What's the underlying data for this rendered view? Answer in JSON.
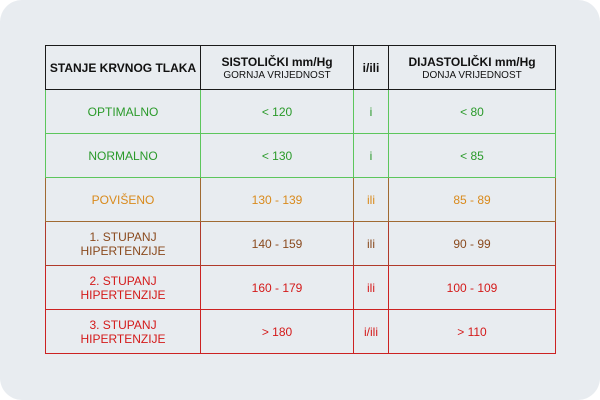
{
  "header": {
    "col1": "STANJE KRVNOG TLAKA",
    "col2_main": "SISTOLIČKI mm/Hg",
    "col2_sub": "GORNJA VRIJEDNOST",
    "col3": "i/ili",
    "col4_main": "DIJASTOLIČKI mm/Hg",
    "col4_sub": "DONJA VRIJEDNOST"
  },
  "rows": [
    {
      "stanje": "OPTIMALNO",
      "sistolicki": "< 120",
      "veznik": "i",
      "dijastolicki": "< 80",
      "color": "#2a9a2a",
      "border": "#5cc65c"
    },
    {
      "stanje": "NORMALNO",
      "sistolicki": "< 130",
      "veznik": "i",
      "dijastolicki": "< 85",
      "color": "#2a9a2a",
      "border": "#5cc65c"
    },
    {
      "stanje": "POVIŠENO",
      "sistolicki": "130 - 139",
      "veznik": "ili",
      "dijastolicki": "85 - 89",
      "color": "#d98a1c",
      "border": "#a06a32"
    },
    {
      "stanje": "1. STUPANJ HIPERTENZIJE",
      "sistolicki": "140 - 159",
      "veznik": "ili",
      "dijastolicki": "90 - 99",
      "color": "#8a4a1e",
      "border": "#b03a2a"
    },
    {
      "stanje": "2. STUPANJ HIPERTENZIJE",
      "sistolicki": "160 - 179",
      "veznik": "ili",
      "dijastolicki": "100 - 109",
      "color": "#d41a1a",
      "border": "#cc2222"
    },
    {
      "stanje": "3. STUPANJ HIPERTENZIJE",
      "sistolicki": "> 180",
      "veznik": "i/ili",
      "dijastolicki": "> 110",
      "color": "#d41a1a",
      "border": "#cc2222"
    }
  ]
}
